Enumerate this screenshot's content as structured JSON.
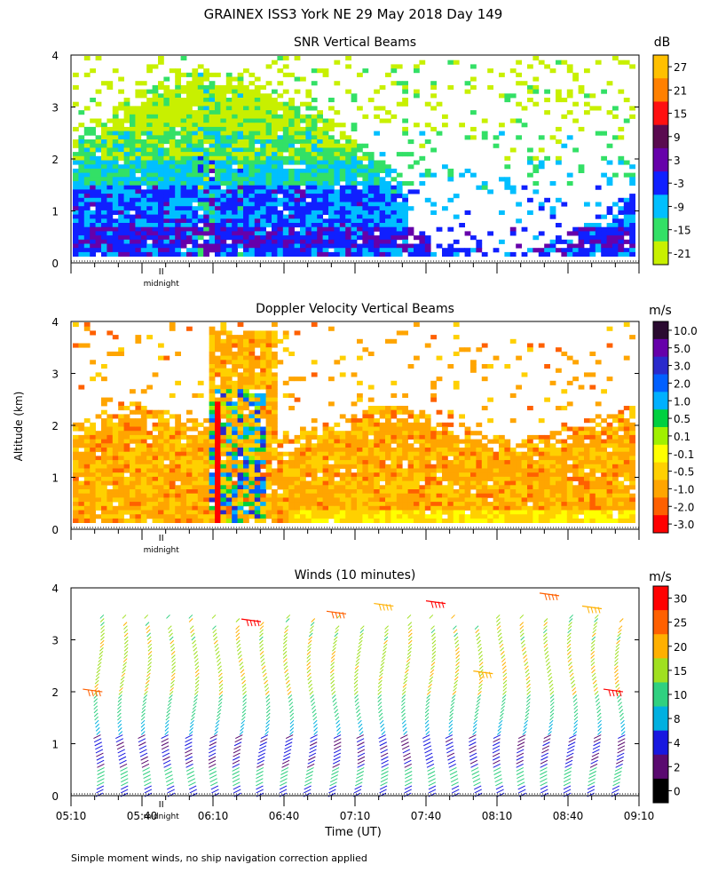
{
  "title": "GRAINEX ISS3 York NE  29 May 2018 Day 149",
  "footnote": "Simple moment winds, no ship navigation correction applied",
  "chart_data": [
    {
      "type": "heatmap",
      "title": "SNR Vertical Beams",
      "ylabel": "Altitude (km)",
      "xlabel": "",
      "ylim": [
        0,
        4
      ],
      "yticks": [
        "0",
        "1",
        "2",
        "3",
        "4"
      ],
      "xlim_minutes": [
        0,
        240
      ],
      "x_marker": {
        "label": "midnight",
        "minute": 40
      },
      "colorbar": {
        "unit": "dB",
        "labels": [
          "27",
          "21",
          "15",
          "9",
          "3",
          "-3",
          "-9",
          "-15",
          "-21"
        ],
        "colors": [
          "#ffc000",
          "#ff8000",
          "#ff1010",
          "#5a0a50",
          "#6600aa",
          "#1020ff",
          "#00bfff",
          "#33e066",
          "#c8f000"
        ]
      },
      "field": "snr"
    },
    {
      "type": "heatmap",
      "title": "Doppler Velocity Vertical Beams",
      "ylabel": "Altitude (km)",
      "xlabel": "",
      "ylim": [
        0,
        4
      ],
      "yticks": [
        "0",
        "1",
        "2",
        "3",
        "4"
      ],
      "xlim_minutes": [
        0,
        240
      ],
      "x_marker": {
        "label": "midnight",
        "minute": 40
      },
      "colorbar": {
        "unit": "m/s",
        "labels": [
          "10.0",
          "5.0",
          "3.0",
          "2.0",
          "1.0",
          "0.5",
          "0.1",
          "-0.1",
          "-0.5",
          "-1.0",
          "-2.0",
          "-3.0"
        ],
        "colors": [
          "#2a0a30",
          "#6600aa",
          "#2a2acc",
          "#0060ff",
          "#00b0ff",
          "#00d040",
          "#a0f000",
          "#ffff00",
          "#ffd000",
          "#ffa500",
          "#ff6000",
          "#ff0000"
        ]
      },
      "field": "doppler"
    },
    {
      "type": "wind-barbs",
      "title": "Winds (10 minutes)",
      "ylabel": "Altitude (km)",
      "xlabel": "Time (UT)",
      "ylim": [
        0,
        4
      ],
      "yticks": [
        "0",
        "1",
        "2",
        "3",
        "4"
      ],
      "xlim_minutes": [
        0,
        240
      ],
      "xticks": [
        "05:10",
        "05:40",
        "06:10",
        "06:40",
        "07:10",
        "07:40",
        "08:10",
        "08:40",
        "09:10"
      ],
      "x_marker": {
        "label": "midnight",
        "minute": 40
      },
      "colorbar": {
        "unit": "m/s",
        "labels": [
          "30",
          "25",
          "20",
          "15",
          "10",
          "8",
          "4",
          "2",
          "0"
        ],
        "colors": [
          "#ff0000",
          "#ff6000",
          "#ffb000",
          "#a0e020",
          "#30d080",
          "#00b0e0",
          "#1818e0",
          "#5a0a70",
          "#000000"
        ]
      },
      "profile_interval_minutes": 10,
      "field": "winds"
    }
  ]
}
